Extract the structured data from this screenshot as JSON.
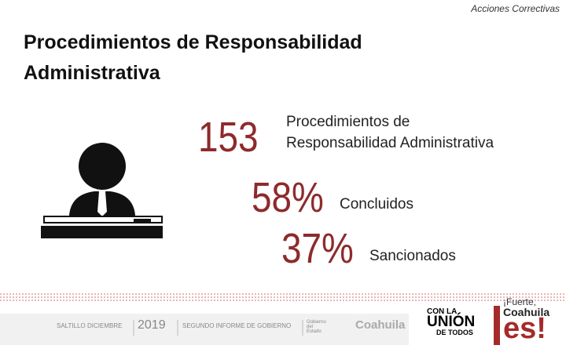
{
  "header": {
    "section": "Acciones Correctivas"
  },
  "title": {
    "line1": "Procedimientos de Responsabilidad",
    "line2": "Administrativa"
  },
  "stats": [
    {
      "number": "153",
      "label_line1": "Procedimientos de",
      "label_line2": "Responsabilidad Administrativa"
    },
    {
      "number": "58%",
      "label": "Concluidos"
    },
    {
      "number": "37%",
      "label": "Sancionados"
    }
  ],
  "footer": {
    "place_date": "SALTILLO  DICIEMBRE",
    "year": "2019",
    "report": "SEGUNDO INFORME DE GOBIERNO",
    "government": "Gobierno del Estado",
    "state": "Coahuila",
    "slogan_top": "CON LA",
    "slogan_main": "UNIÓN",
    "slogan_bottom": "DE TODOS",
    "brand_top": "¡Fuerte,",
    "brand_mid": "Coahuila",
    "brand_main": "es!"
  }
}
